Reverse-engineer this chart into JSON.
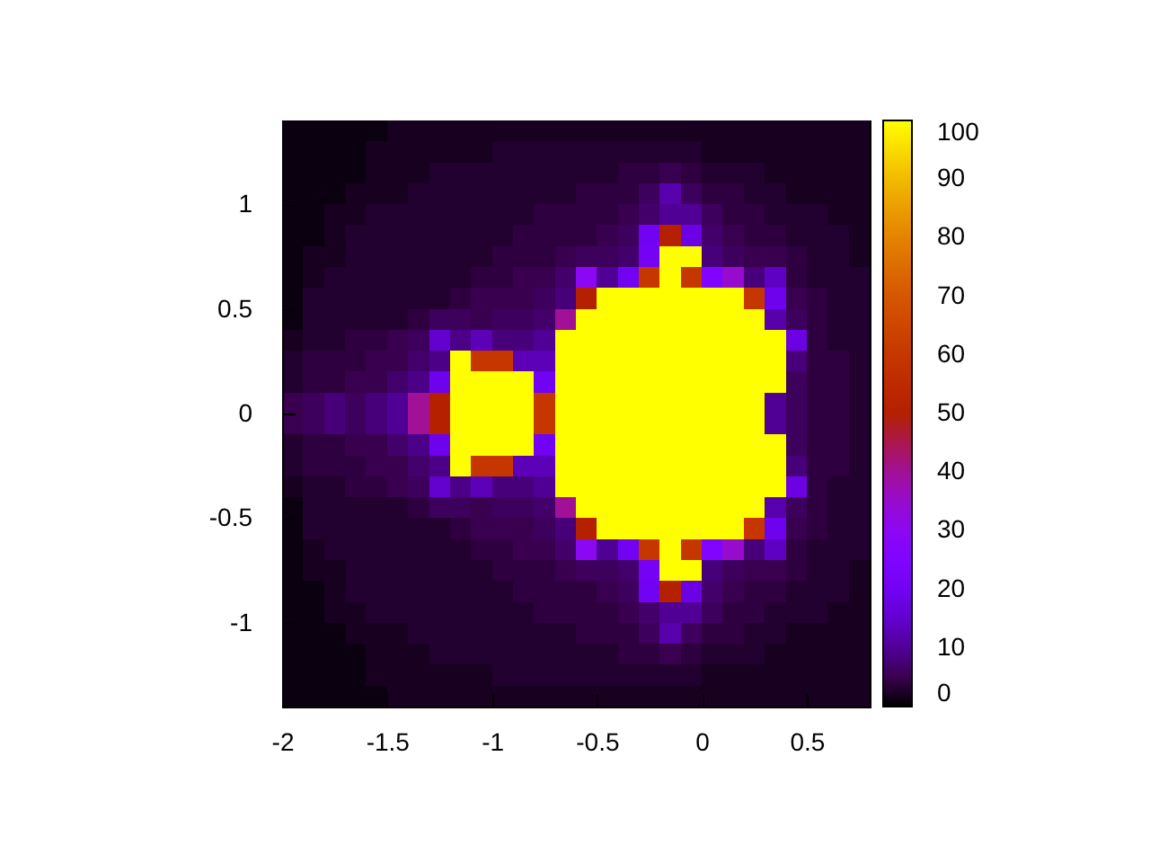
{
  "chart_data": {
    "type": "heatmap",
    "x": [
      -1.95,
      -1.85,
      -1.75,
      -1.65,
      -1.55,
      -1.45,
      -1.35,
      -1.25,
      -1.15,
      -1.05,
      -0.95,
      -0.85,
      -0.75,
      -0.65,
      -0.55,
      -0.45,
      -0.35,
      -0.25,
      -0.15,
      -0.05,
      0.05,
      0.15,
      0.25,
      0.35,
      0.45,
      0.55,
      0.65,
      0.75
    ],
    "cells": [
      [
        1,
        1,
        1,
        1,
        1,
        2,
        2,
        2,
        2,
        2,
        2,
        2,
        2,
        2,
        2,
        2,
        2,
        2,
        2,
        2,
        2,
        2,
        2,
        2,
        2,
        2,
        2,
        2
      ],
      [
        1,
        1,
        1,
        1,
        2,
        2,
        2,
        2,
        2,
        2,
        3,
        3,
        3,
        3,
        3,
        3,
        3,
        3,
        3,
        3,
        2,
        2,
        2,
        2,
        2,
        2,
        2,
        2
      ],
      [
        1,
        1,
        1,
        1,
        2,
        2,
        2,
        3,
        3,
        3,
        3,
        3,
        3,
        3,
        3,
        3,
        4,
        4,
        5,
        4,
        3,
        3,
        3,
        2,
        2,
        2,
        2,
        2
      ],
      [
        1,
        1,
        1,
        2,
        2,
        2,
        3,
        3,
        3,
        3,
        3,
        3,
        3,
        3,
        4,
        4,
        4,
        6,
        12,
        6,
        4,
        4,
        3,
        3,
        2,
        2,
        2,
        2
      ],
      [
        1,
        1,
        2,
        2,
        3,
        3,
        3,
        3,
        3,
        3,
        3,
        3,
        4,
        4,
        4,
        4,
        5,
        7,
        10,
        10,
        6,
        4,
        4,
        3,
        3,
        3,
        2,
        2
      ],
      [
        1,
        1,
        2,
        3,
        3,
        3,
        3,
        3,
        3,
        3,
        3,
        4,
        4,
        4,
        4,
        5,
        6,
        20,
        50,
        18,
        7,
        5,
        4,
        4,
        3,
        3,
        3,
        2
      ],
      [
        1,
        2,
        2,
        3,
        3,
        3,
        3,
        3,
        3,
        3,
        4,
        4,
        4,
        5,
        6,
        6,
        7,
        21,
        100,
        100,
        8,
        6,
        5,
        5,
        4,
        3,
        3,
        2
      ],
      [
        1,
        2,
        3,
        3,
        3,
        3,
        3,
        3,
        3,
        4,
        4,
        5,
        5,
        7,
        30,
        10,
        20,
        60,
        100,
        60,
        25,
        35,
        8,
        14,
        4,
        3,
        3,
        3
      ],
      [
        1,
        3,
        3,
        3,
        3,
        3,
        3,
        3,
        4,
        5,
        5,
        5,
        6,
        8,
        50,
        100,
        100,
        100,
        100,
        100,
        100,
        100,
        60,
        19,
        5,
        4,
        3,
        3
      ],
      [
        1,
        3,
        3,
        3,
        3,
        3,
        4,
        6,
        6,
        5,
        6,
        6,
        7,
        40,
        100,
        100,
        100,
        100,
        100,
        100,
        100,
        100,
        100,
        12,
        6,
        4,
        3,
        3
      ],
      [
        2,
        3,
        3,
        4,
        4,
        5,
        6,
        15,
        9,
        13,
        8,
        8,
        10,
        100,
        100,
        100,
        100,
        100,
        100,
        100,
        100,
        100,
        100,
        100,
        18,
        4,
        3,
        3
      ],
      [
        3,
        4,
        4,
        4,
        5,
        5,
        7,
        9,
        100,
        60,
        60,
        13,
        13,
        100,
        100,
        100,
        100,
        100,
        100,
        100,
        100,
        100,
        100,
        100,
        8,
        4,
        4,
        3
      ],
      [
        3,
        4,
        4,
        5,
        5,
        7,
        9,
        19,
        100,
        100,
        100,
        100,
        20,
        100,
        100,
        100,
        100,
        100,
        100,
        100,
        100,
        100,
        100,
        100,
        6,
        4,
        4,
        3
      ],
      [
        5,
        6,
        8,
        6,
        8,
        10,
        40,
        50,
        100,
        100,
        100,
        100,
        60,
        100,
        100,
        100,
        100,
        100,
        100,
        100,
        100,
        100,
        100,
        10,
        6,
        4,
        4,
        3
      ],
      [
        5,
        6,
        8,
        6,
        8,
        10,
        40,
        50,
        100,
        100,
        100,
        100,
        60,
        100,
        100,
        100,
        100,
        100,
        100,
        100,
        100,
        100,
        100,
        10,
        6,
        4,
        4,
        3
      ],
      [
        3,
        4,
        4,
        5,
        5,
        7,
        9,
        19,
        100,
        100,
        100,
        100,
        20,
        100,
        100,
        100,
        100,
        100,
        100,
        100,
        100,
        100,
        100,
        100,
        6,
        4,
        4,
        3
      ],
      [
        3,
        4,
        4,
        4,
        5,
        5,
        7,
        9,
        100,
        60,
        60,
        13,
        13,
        100,
        100,
        100,
        100,
        100,
        100,
        100,
        100,
        100,
        100,
        100,
        8,
        4,
        4,
        3
      ],
      [
        2,
        3,
        3,
        4,
        4,
        5,
        6,
        15,
        9,
        13,
        8,
        8,
        10,
        100,
        100,
        100,
        100,
        100,
        100,
        100,
        100,
        100,
        100,
        100,
        18,
        4,
        3,
        3
      ],
      [
        1,
        3,
        3,
        3,
        3,
        3,
        4,
        6,
        6,
        5,
        6,
        6,
        7,
        40,
        100,
        100,
        100,
        100,
        100,
        100,
        100,
        100,
        100,
        12,
        6,
        4,
        3,
        3
      ],
      [
        1,
        3,
        3,
        3,
        3,
        3,
        3,
        3,
        4,
        5,
        5,
        5,
        6,
        8,
        50,
        100,
        100,
        100,
        100,
        100,
        100,
        100,
        60,
        19,
        5,
        4,
        3,
        3
      ],
      [
        1,
        2,
        3,
        3,
        3,
        3,
        3,
        3,
        3,
        4,
        4,
        5,
        5,
        7,
        30,
        10,
        20,
        60,
        100,
        60,
        25,
        35,
        8,
        14,
        4,
        3,
        3,
        3
      ],
      [
        1,
        2,
        2,
        3,
        3,
        3,
        3,
        3,
        3,
        3,
        4,
        4,
        4,
        5,
        6,
        6,
        7,
        21,
        100,
        100,
        8,
        6,
        5,
        5,
        4,
        3,
        3,
        2
      ],
      [
        1,
        1,
        2,
        3,
        3,
        3,
        3,
        3,
        3,
        3,
        3,
        4,
        4,
        4,
        4,
        5,
        6,
        20,
        50,
        18,
        7,
        5,
        4,
        4,
        3,
        3,
        3,
        2
      ],
      [
        1,
        1,
        2,
        2,
        3,
        3,
        3,
        3,
        3,
        3,
        3,
        3,
        4,
        4,
        4,
        4,
        5,
        7,
        10,
        10,
        6,
        4,
        4,
        3,
        3,
        3,
        2,
        2
      ],
      [
        1,
        1,
        1,
        2,
        2,
        2,
        3,
        3,
        3,
        3,
        3,
        3,
        3,
        3,
        4,
        4,
        4,
        6,
        12,
        6,
        4,
        4,
        3,
        3,
        2,
        2,
        2,
        2
      ],
      [
        1,
        1,
        1,
        1,
        2,
        2,
        2,
        3,
        3,
        3,
        3,
        3,
        3,
        3,
        3,
        3,
        4,
        4,
        5,
        4,
        3,
        3,
        3,
        2,
        2,
        2,
        2,
        2
      ],
      [
        1,
        1,
        1,
        1,
        2,
        2,
        2,
        2,
        2,
        2,
        3,
        3,
        3,
        3,
        3,
        3,
        3,
        3,
        3,
        3,
        2,
        2,
        2,
        2,
        2,
        2,
        2,
        2
      ],
      [
        1,
        1,
        1,
        1,
        1,
        2,
        2,
        2,
        2,
        2,
        2,
        2,
        2,
        2,
        2,
        2,
        2,
        2,
        2,
        2,
        2,
        2,
        2,
        2,
        2,
        2,
        2,
        2
      ]
    ],
    "xlim": [
      -2,
      0.8
    ],
    "ylim": [
      -1.4,
      1.4
    ],
    "xticks": [
      -2,
      -1.5,
      -1,
      -0.5,
      0,
      0.5
    ],
    "yticks": [
      -1,
      -0.5,
      0,
      0.5,
      1
    ],
    "clim": [
      0,
      100
    ],
    "cticks": [
      0,
      10,
      20,
      30,
      40,
      50,
      60,
      70,
      80,
      90,
      100
    ]
  }
}
